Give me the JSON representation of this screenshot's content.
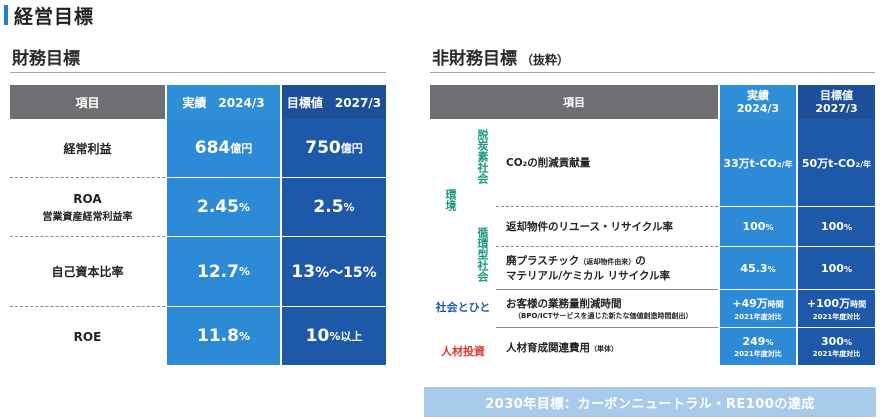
{
  "header": {
    "title": "経営目標"
  },
  "financial": {
    "title": "財務目標",
    "head": {
      "item": "項目",
      "actual": "実績　2024/3",
      "target": "目標値　2027/3"
    },
    "rows": [
      {
        "name": "経常利益",
        "sub": "",
        "actual_num": "684",
        "actual_unit": "億円",
        "target_num": "750",
        "target_unit": "億円"
      },
      {
        "name": "ROA",
        "sub": "営業資産経常利益率",
        "actual_num": "2.45",
        "actual_unit": "%",
        "target_num": "2.5",
        "target_unit": "%"
      },
      {
        "name": "自己資本比率",
        "sub": "",
        "actual_num": "12.7",
        "actual_unit": "%",
        "target_num": "13",
        "target_unit": "%～15%"
      },
      {
        "name": "ROE",
        "sub": "",
        "actual_num": "11.8",
        "actual_unit": "%",
        "target_num": "10",
        "target_unit": "%以上"
      }
    ]
  },
  "nonfinancial": {
    "title": "非財務目標",
    "title_note": "（抜粋）",
    "head": {
      "item": "項目",
      "actual_l1": "実績",
      "actual_l2": "2024/3",
      "target_l1": "目標値",
      "target_l2": "2027/3"
    },
    "categories": {
      "environment": "環境",
      "decarbon": "脱炭素社会",
      "circular": "循環型社会",
      "social": "社会とひと",
      "hr": "人材投資"
    },
    "rows": [
      {
        "item": "CO₂の削減貢献量",
        "item_note": "",
        "actual": "33万t-CO₂",
        "actual_unit": "/年",
        "actual_note": "",
        "target": "50万t-CO₂",
        "target_unit": "/年",
        "target_note": ""
      },
      {
        "item": "返却物件のリユース・リサイクル率",
        "item_note": "",
        "actual": "100",
        "actual_unit": "%",
        "actual_note": "",
        "target": "100",
        "target_unit": "%",
        "target_note": ""
      },
      {
        "item": "廃プラスチック",
        "item_small": "（返却物件由来）",
        "item_tail": "の",
        "item_line2": "マテリアル/ケミカル リサイクル率",
        "actual": "45.3",
        "actual_unit": "%",
        "actual_note": "",
        "target": "100",
        "target_unit": "%",
        "target_note": ""
      },
      {
        "item": "お客様の業務量削減時間",
        "item_note": "（BPO/ICTサービスを通じた新たな価値創造時間創出）",
        "actual": "+49万",
        "actual_unit": "時間",
        "actual_note": "2021年度対比",
        "target": "+100万",
        "target_unit": "時間",
        "target_note": "2021年度対比"
      },
      {
        "item": "人材育成関連費用",
        "item_small": "（単体）",
        "actual": "249",
        "actual_unit": "%",
        "actual_note": "2021年度対比",
        "target": "300",
        "target_unit": "%",
        "target_note": "2021年度対比"
      }
    ]
  },
  "banner": {
    "text": "2030年目標：カーボンニュートラル・RE100の達成"
  },
  "colors": {
    "accent": "#1f7fd0",
    "header_gray": "#6d6f72",
    "actual_blue": "#2d8ad6",
    "target_blue": "#1d58a9",
    "environment_green": "#1a9a7a",
    "social_blue": "#1d58a9",
    "hr_red": "#e03a2e",
    "banner_bg": "#a9cbeb"
  }
}
